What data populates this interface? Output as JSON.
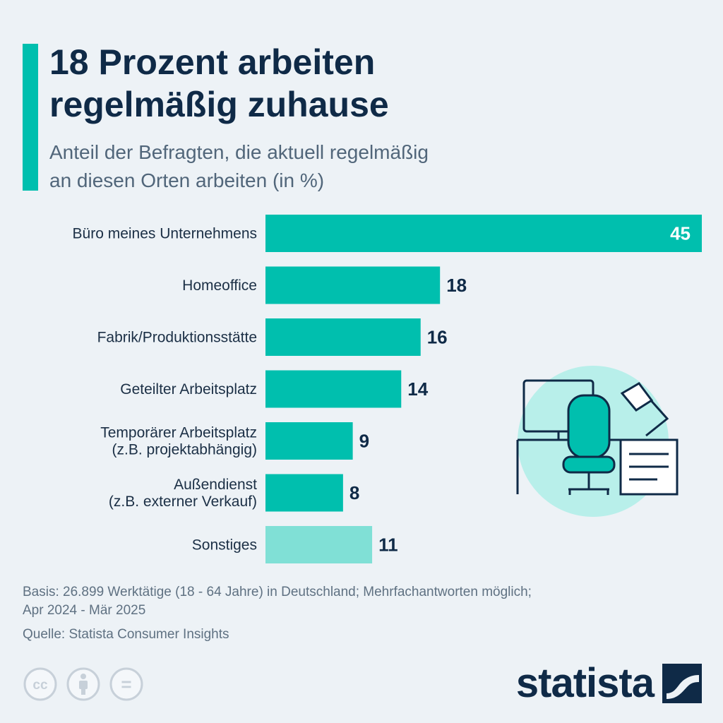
{
  "title_lines": [
    "18 Prozent arbeiten",
    "regelmäßig zuhause"
  ],
  "subtitle_lines": [
    "Anteil der Befragten, die aktuell regelmäßig",
    "an diesen Orten arbeiten (in %)"
  ],
  "chart_data": {
    "type": "bar",
    "orientation": "horizontal",
    "title": "18 Prozent arbeiten regelmäßig zuhause",
    "subtitle": "Anteil der Befragten, die aktuell regelmäßig an diesen Orten arbeiten (in %)",
    "categories": [
      [
        "Büro meines Unternehmens"
      ],
      [
        "Homeoffice"
      ],
      [
        "Fabrik/Produktionsstätte"
      ],
      [
        "Geteilter Arbeitsplatz"
      ],
      [
        "Temporärer Arbeitsplatz",
        "(z.B. projektabhängig)"
      ],
      [
        "Außendienst",
        "(z.B. externer Verkauf)"
      ],
      [
        "Sonstiges"
      ]
    ],
    "values": [
      45,
      18,
      16,
      14,
      9,
      8,
      11
    ],
    "bar_colors": [
      "#00bfae",
      "#00bfae",
      "#00bfae",
      "#00bfae",
      "#00bfae",
      "#00bfae",
      "#80e0d6"
    ],
    "xlim": [
      0,
      45
    ],
    "grid": false,
    "legend": "none"
  },
  "footer": {
    "basis_lines": [
      "Basis: 26.899 Werktätige (18 - 64 Jahre) in Deutschland; Mehrfachantworten möglich;",
      "Apr 2024 - Mär 2025"
    ],
    "source": "Quelle: Statista Consumer Insights"
  },
  "license_icons": [
    "cc-icon",
    "attribution-icon",
    "no-derivatives-icon"
  ],
  "license_text": {
    "cc": "cc",
    "nd": "="
  },
  "logo": {
    "text": "statista"
  },
  "colors": {
    "accent": "#00bfae",
    "accent_light": "#80e0d6",
    "text_dark": "#0f2a47",
    "background": "#edf2f6",
    "illustration_circle": "#b8efea"
  }
}
